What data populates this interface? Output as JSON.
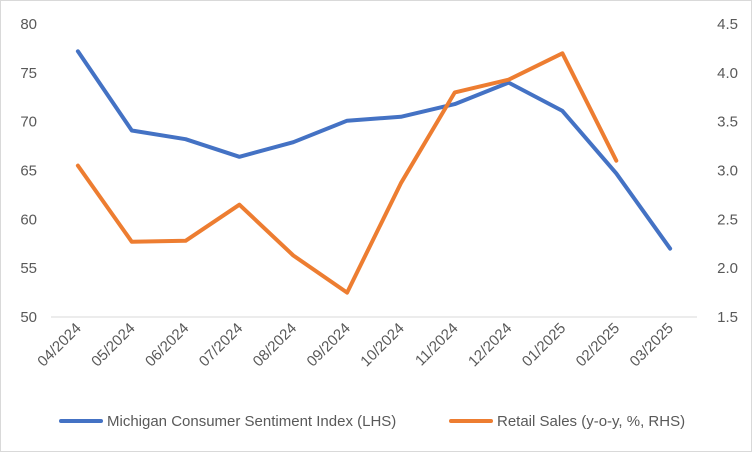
{
  "chart_data": {
    "type": "line",
    "title": "",
    "categories": [
      "04/2024",
      "05/2024",
      "06/2024",
      "07/2024",
      "08/2024",
      "09/2024",
      "10/2024",
      "11/2024",
      "12/2024",
      "01/2025",
      "02/2025",
      "03/2025"
    ],
    "series": [
      {
        "name": "Michigan Consumer Sentiment Index (LHS)",
        "axis": "left",
        "color": "#4472C4",
        "values": [
          77.2,
          69.1,
          68.2,
          66.4,
          67.9,
          70.1,
          70.5,
          71.8,
          74.0,
          71.1,
          64.7,
          57.0
        ]
      },
      {
        "name": "Retail Sales (y-o-y, %, RHS)",
        "axis": "right",
        "color": "#ED7D31",
        "values": [
          3.05,
          2.27,
          2.28,
          2.65,
          2.13,
          1.75,
          2.87,
          3.8,
          3.93,
          4.2,
          3.1,
          null
        ]
      }
    ],
    "y_left": {
      "min": 50,
      "max": 80,
      "ticks": [
        "50",
        "55",
        "60",
        "65",
        "70",
        "75",
        "80"
      ]
    },
    "y_right": {
      "min": 1.5,
      "max": 4.5,
      "ticks": [
        "1.5",
        "2.0",
        "2.5",
        "3.0",
        "3.5",
        "4.0",
        "4.5"
      ]
    },
    "grid": false,
    "legend": "bottom"
  }
}
